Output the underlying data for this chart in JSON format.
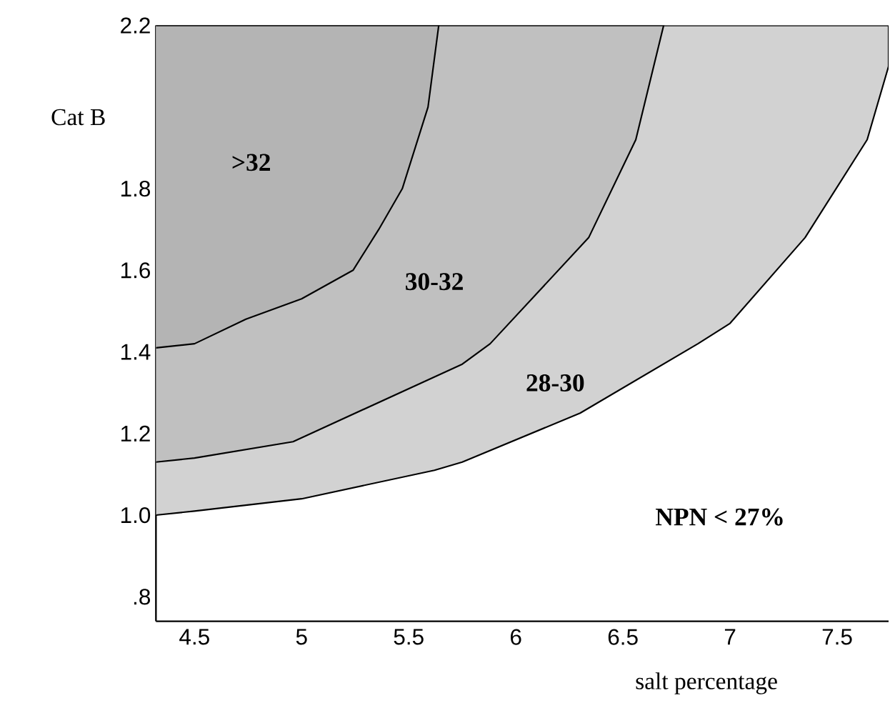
{
  "chart_data": {
    "type": "area",
    "xlabel": "salt percentage",
    "ylabel": "Cat B",
    "xlim": [
      4.32,
      7.74
    ],
    "ylim": [
      0.74,
      2.2
    ],
    "xticks": [
      4.5,
      5,
      5.5,
      6,
      6.5,
      7,
      7.5
    ],
    "yticks": [
      {
        "value": 0.8,
        "label": ".8"
      },
      {
        "value": 1.0,
        "label": "1.0"
      },
      1.2,
      1.4,
      1.6,
      1.8,
      2.2
    ],
    "series": [
      {
        "color": "#d2d2d2",
        "x": [
          4.32,
          4.5,
          5.0,
          5.62,
          5.75,
          6.3,
          6.85,
          7.0,
          7.35,
          7.64,
          7.74,
          7.74,
          4.32
        ],
        "values": [
          1.0,
          1.01,
          1.04,
          1.11,
          1.13,
          1.25,
          1.42,
          1.47,
          1.68,
          1.92,
          2.1,
          2.2,
          2.2
        ]
      },
      {
        "color": "#c0c0c0",
        "x": [
          4.32,
          4.5,
          4.96,
          5.75,
          5.88,
          6.34,
          6.56,
          6.69,
          4.32
        ],
        "values": [
          1.13,
          1.14,
          1.18,
          1.37,
          1.42,
          1.68,
          1.92,
          2.2,
          2.2
        ]
      },
      {
        "color": "#b4b4b4",
        "x": [
          4.32,
          4.5,
          4.74,
          5.0,
          5.24,
          5.36,
          5.47,
          5.59,
          5.64,
          4.32
        ],
        "values": [
          1.41,
          1.42,
          1.48,
          1.53,
          1.6,
          1.7,
          1.8,
          2.0,
          2.2,
          2.2
        ]
      }
    ],
    "annotations": [
      ">32",
      "30-32",
      "28-30",
      "NPN < 27%"
    ]
  }
}
